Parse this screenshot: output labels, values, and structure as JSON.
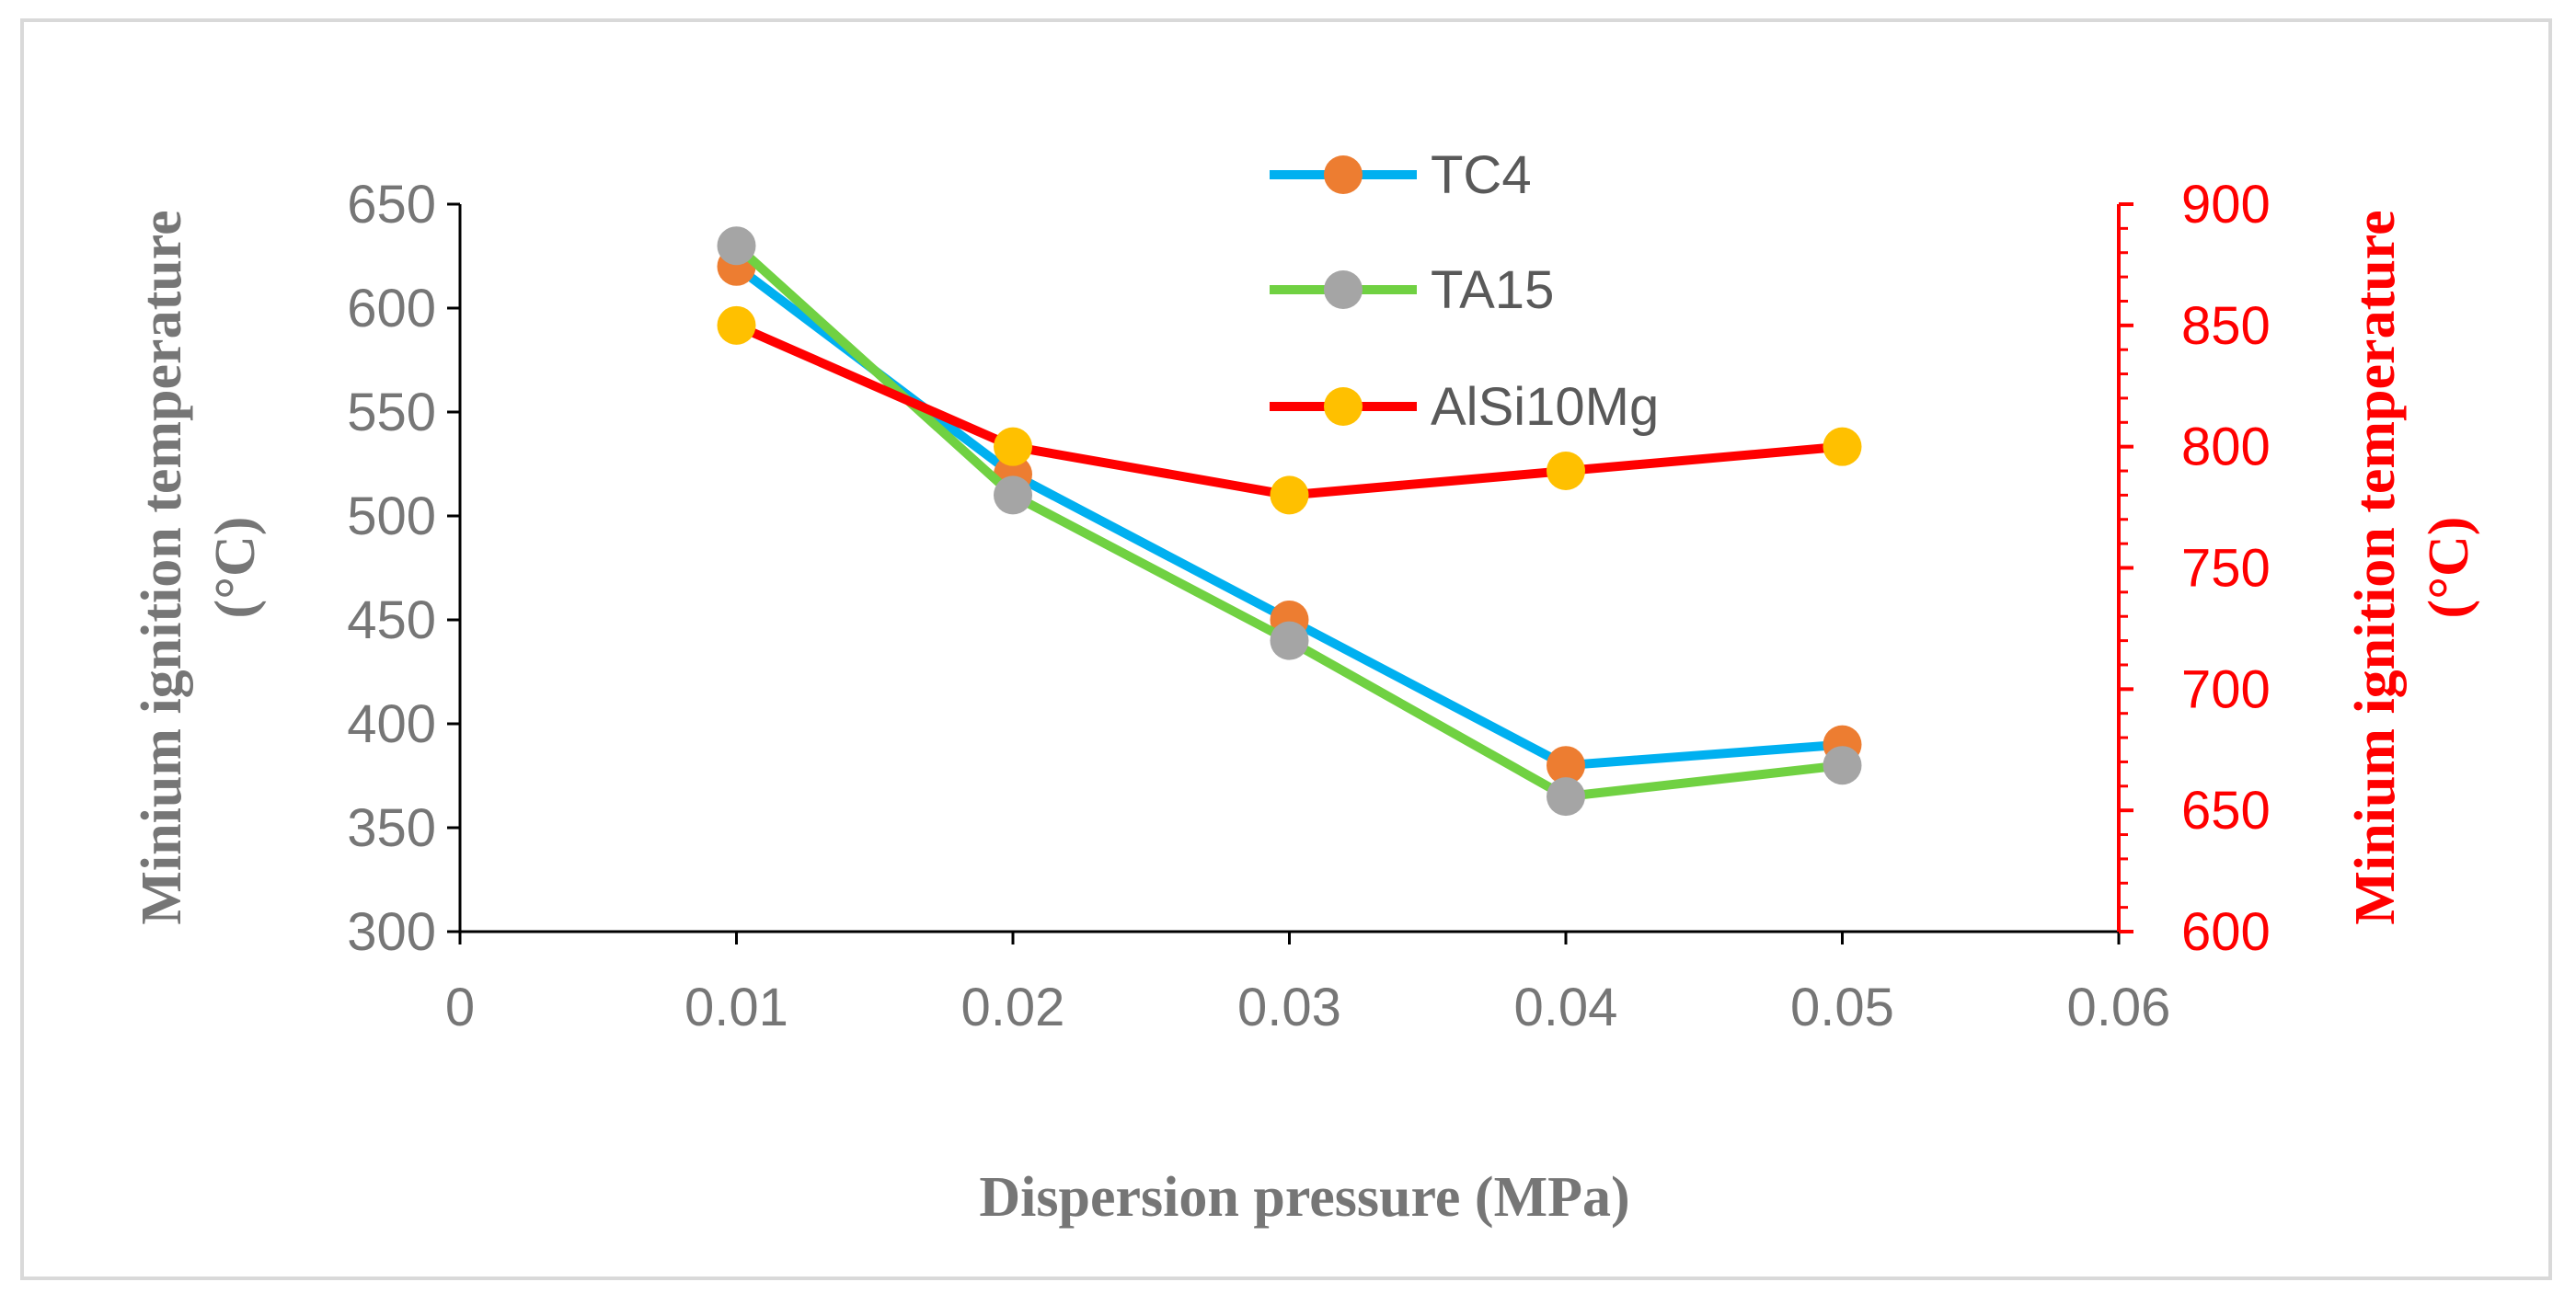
{
  "chart_data": {
    "type": "line",
    "title": "",
    "xlabel": "Dispersion pressure (MPa)",
    "ylabel": [
      "Minium ignition temperature",
      "(°C)"
    ],
    "y2label": [
      "Minium ignition temperature",
      "(°C)"
    ],
    "xlim": [
      0,
      0.06
    ],
    "ylim": [
      300,
      650
    ],
    "y2lim": [
      600,
      900
    ],
    "x_ticks": [
      "0",
      "0.01",
      "0.02",
      "0.03",
      "0.04",
      "0.05",
      "0.06"
    ],
    "y_ticks": [
      "300",
      "350",
      "400",
      "450",
      "500",
      "550",
      "600",
      "650"
    ],
    "y2_ticks": [
      "600",
      "650",
      "700",
      "750",
      "800",
      "850",
      "900"
    ],
    "legend_position": "top-center",
    "series": [
      {
        "name": "TC4",
        "axis": "left",
        "line_color": "#00b0f0",
        "marker_color": "#ed7d31",
        "x": [
          0.01,
          0.02,
          0.03,
          0.04,
          0.05
        ],
        "values": [
          620,
          520,
          450,
          380,
          390
        ]
      },
      {
        "name": "TA15",
        "axis": "left",
        "line_color": "#70d142",
        "marker_color": "#a5a5a5",
        "x": [
          0.01,
          0.02,
          0.03,
          0.04,
          0.05
        ],
        "values": [
          630,
          510,
          440,
          365,
          380
        ]
      },
      {
        "name": "AlSi10Mg",
        "axis": "right",
        "line_color": "#ff0000",
        "marker_color": "#ffc000",
        "x": [
          0.01,
          0.02,
          0.03,
          0.04,
          0.05
        ],
        "values": [
          850,
          800,
          780,
          790,
          800
        ]
      }
    ],
    "colors": {
      "left_axis": "#767676",
      "right_axis": "#ff0000",
      "axis_line": "#000000",
      "frame": "#d9d9d9"
    }
  }
}
